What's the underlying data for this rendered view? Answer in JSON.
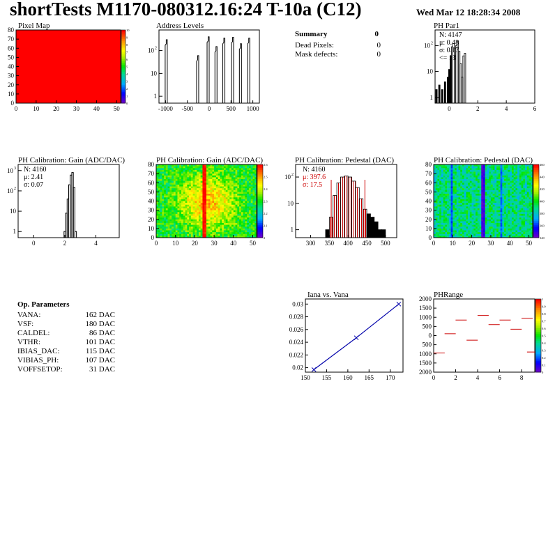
{
  "header": {
    "title": "shortTests M1170-080312.16:24 T-10a (C12)",
    "timestamp": "Wed Mar 12 18:28:34 2008"
  },
  "panels": {
    "pixel_map": {
      "title": "Pixel Map"
    },
    "address_levels": {
      "title": "Address Levels"
    },
    "summary": {
      "heading": "Summary",
      "heading_value": "0",
      "rows": [
        {
          "label": "Dead Pixels:",
          "value": "0"
        },
        {
          "label": "Mask defects:",
          "value": "0"
        }
      ]
    },
    "ph_par1": {
      "title": "PH Par1",
      "stats": [
        "N: 4147",
        "μ: 0.48",
        "σ: 0.17",
        "<= 13"
      ]
    },
    "gain_1d": {
      "title": "PH Calibration: Gain (ADC/DAC)",
      "stats": [
        "N: 4160",
        "μ: 2.41",
        "σ: 0.07"
      ]
    },
    "gain_2d": {
      "title": "PH Calibration: Gain (ADC/DAC)"
    },
    "ped_1d": {
      "title": "PH Calibration: Pedestal (DAC)",
      "stats": [
        "N: 4160",
        "μ: 397.6",
        "σ: 17.5"
      ]
    },
    "ped_2d": {
      "title": "PH Calibration: Pedestal (DAC)"
    },
    "iana": {
      "title": "Iana vs. Vana"
    },
    "phrange": {
      "title": "PHRange"
    }
  },
  "op_parameters": {
    "heading": "Op. Parameters",
    "rows": [
      {
        "label": "VANA:",
        "value": "162 DAC"
      },
      {
        "label": "VSF:",
        "value": "180 DAC"
      },
      {
        "label": "CALDEL:",
        "value": "86 DAC"
      },
      {
        "label": "VTHR:",
        "value": "101 DAC"
      },
      {
        "label": "IBIAS_DAC:",
        "value": "115 DAC"
      },
      {
        "label": "VIBIAS_PH:",
        "value": "107 DAC"
      },
      {
        "label": "VOFFSETOP:",
        "value": "31 DAC"
      }
    ]
  },
  "chart_data": [
    {
      "id": "pixel_map",
      "type": "heatmap",
      "title": "Pixel Map",
      "xlim": [
        0,
        52
      ],
      "ylim": [
        0,
        80
      ],
      "xticks": [
        "0",
        "10",
        "20",
        "30",
        "40",
        "50"
      ],
      "yticks": [
        "0",
        "10",
        "20",
        "30",
        "40",
        "50",
        "60",
        "70",
        "80"
      ],
      "fill": "uniform",
      "color": "#ff0000",
      "zticks": [
        "10",
        "9",
        "8",
        "7",
        "6",
        "5",
        "4",
        "3",
        "2",
        "1",
        "0"
      ]
    },
    {
      "id": "address_levels",
      "type": "bar",
      "title": "Address Levels",
      "log_y": true,
      "xlim": [
        -1150,
        1150
      ],
      "xticks": [
        "-1000",
        "-500",
        "0",
        "500",
        "1000"
      ],
      "yticks": [
        "1",
        "10",
        "10^2"
      ],
      "peaks": [
        {
          "x": -960,
          "y": 300
        },
        {
          "x": -240,
          "y": 60
        },
        {
          "x": 0,
          "y": 400
        },
        {
          "x": 180,
          "y": 150
        },
        {
          "x": 360,
          "y": 350
        },
        {
          "x": 560,
          "y": 380
        },
        {
          "x": 740,
          "y": 200
        },
        {
          "x": 930,
          "y": 350
        }
      ]
    },
    {
      "id": "ph_par1",
      "type": "bar",
      "title": "PH Par1",
      "log_y": true,
      "xlim": [
        -1,
        6
      ],
      "xticks": [
        "0",
        "2",
        "4",
        "6"
      ],
      "yticks": [
        "1",
        "10",
        "10^2"
      ],
      "x": [
        -0.9,
        -0.7,
        -0.5,
        -0.3,
        -0.1,
        0.0,
        0.1,
        0.2,
        0.3,
        0.4,
        0.5,
        0.6,
        0.7,
        0.8,
        0.9,
        1.0,
        1.1
      ],
      "y": [
        2,
        3,
        2,
        4,
        6,
        12,
        40,
        90,
        120,
        80,
        100,
        150,
        60,
        20,
        6,
        40,
        50
      ]
    },
    {
      "id": "gain_1d",
      "type": "bar",
      "title": "PH Calibration: Gain (ADC/DAC)",
      "log_y": true,
      "xlim": [
        -1,
        5.5
      ],
      "xticks": [
        "0",
        "2",
        "4"
      ],
      "yticks": [
        "1",
        "10",
        "10^2",
        "10^3"
      ],
      "x": [
        2.0,
        2.1,
        2.2,
        2.3,
        2.4,
        2.5,
        2.6,
        2.7
      ],
      "y": [
        1,
        8,
        40,
        200,
        600,
        800,
        150,
        1
      ]
    },
    {
      "id": "gain_2d",
      "type": "heatmap",
      "title": "PH Calibration: Gain (ADC/DAC)",
      "xlim": [
        0,
        52
      ],
      "ylim": [
        0,
        80
      ],
      "xticks": [
        "0",
        "10",
        "20",
        "30",
        "40",
        "50"
      ],
      "yticks": [
        "0",
        "10",
        "20",
        "30",
        "40",
        "50",
        "60",
        "70",
        "80"
      ],
      "zticks": [
        "2.6",
        "2.5",
        "2.4",
        "2.3",
        "2.2",
        "2.1",
        "2"
      ]
    },
    {
      "id": "ped_1d",
      "type": "bar",
      "title": "PH Calibration: Pedestal (DAC)",
      "log_y": true,
      "xlim": [
        260,
        530
      ],
      "xticks": [
        "300",
        "350",
        "400",
        "450",
        "500"
      ],
      "yticks": [
        "1",
        "10",
        "10^2"
      ],
      "x": [
        345,
        355,
        365,
        375,
        385,
        395,
        405,
        415,
        425,
        435,
        445,
        455,
        465,
        475,
        485,
        495
      ],
      "y": [
        1,
        3,
        20,
        60,
        100,
        110,
        100,
        70,
        40,
        15,
        6,
        4,
        3,
        2,
        1,
        1
      ],
      "markers": [
        355,
        445
      ]
    },
    {
      "id": "ped_2d",
      "type": "heatmap",
      "title": "PH Calibration: Pedestal (DAC)",
      "xlim": [
        0,
        52
      ],
      "ylim": [
        0,
        80
      ],
      "xticks": [
        "0",
        "10",
        "20",
        "30",
        "40",
        "50"
      ],
      "yticks": [
        "0",
        "10",
        "20",
        "30",
        "40",
        "50",
        "60",
        "70",
        "80"
      ],
      "zticks": [
        "460",
        "440",
        "420",
        "400",
        "380",
        "360",
        "340"
      ]
    },
    {
      "id": "iana",
      "type": "line",
      "title": "Iana vs. Vana",
      "xlim": [
        150,
        173
      ],
      "ylim": [
        0.0193,
        0.0308
      ],
      "xticks": [
        "150",
        "155",
        "160",
        "165",
        "170"
      ],
      "yticks": [
        "0.02",
        "0.022",
        "0.024",
        "0.026",
        "0.028",
        "0.03"
      ],
      "x": [
        152,
        162,
        172
      ],
      "y": [
        0.0197,
        0.0247,
        0.03
      ]
    },
    {
      "id": "phrange",
      "type": "scatter",
      "title": "PHRange",
      "xlim": [
        0,
        9.2
      ],
      "ylim": [
        -2000,
        2000
      ],
      "xticks": [
        "0",
        "2",
        "4",
        "6",
        "8"
      ],
      "yticks": [
        "2000",
        "1500",
        "1000",
        "500",
        "0",
        "500",
        "1000",
        "1500",
        "2000"
      ],
      "x": [
        0.5,
        1.5,
        2.5,
        3.5,
        4.5,
        5.5,
        6.5,
        7.5,
        8.5,
        9.0
      ],
      "y": [
        -950,
        100,
        850,
        -250,
        1100,
        600,
        850,
        350,
        950,
        -900
      ],
      "zticks": [
        "1",
        "0.9",
        "0.8",
        "0.7",
        "0.6",
        "0.5",
        "0.4",
        "0.3",
        "0.2",
        "0.1",
        "0"
      ]
    }
  ],
  "colors": {
    "hist_line": "#000000",
    "fit_blue": "#0000aa",
    "marker_red": "#cc0000"
  }
}
